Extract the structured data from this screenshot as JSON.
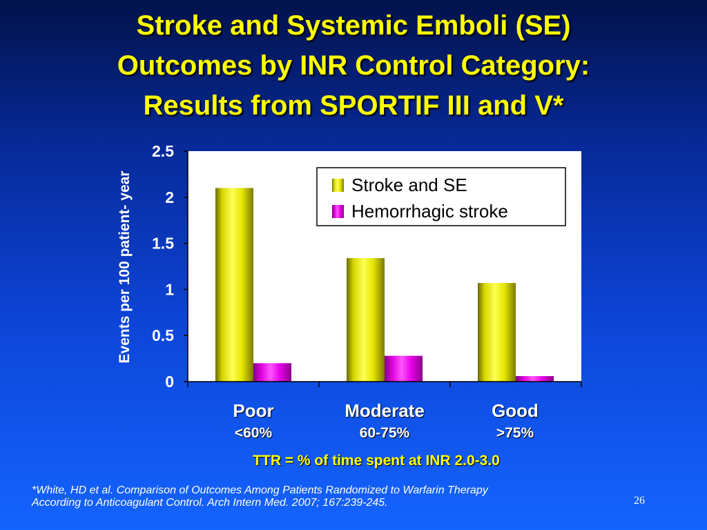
{
  "slide": {
    "title_lines": [
      "Stroke and Systemic Emboli (SE)",
      "Outcomes by INR Control Category:",
      "Results from SPORTIF III and V*"
    ],
    "footnote_lines": [
      "*White, HD et al. Comparison of Outcomes Among Patients Randomized to Warfarin Therapy",
      "According to Anticoagulant Control.  Arch Intern Med. 2007; 167:239-245."
    ],
    "page_number": "26"
  },
  "chart_data": {
    "type": "bar",
    "categories": [
      "Poor",
      "Moderate",
      "Good"
    ],
    "category_sublabels": [
      "<60%",
      "60-75%",
      ">75%"
    ],
    "series": [
      {
        "name": "Stroke and SE",
        "values": [
          2.1,
          1.34,
          1.07
        ],
        "labels": [
          "2.1",
          "1.34",
          "1.07"
        ],
        "color": "#e6e600"
      },
      {
        "name": "Hemorrhagic stroke",
        "values": [
          0.2,
          0.28,
          0.06
        ],
        "labels": [
          "0.2",
          "0.28",
          "0.06"
        ],
        "color": "#e600e6"
      }
    ],
    "title": "",
    "xlabel": "TTR = % of time spent at INR 2.0-3.0",
    "ylabel": "Events per 100 patient- year",
    "ylim": [
      0,
      2.5
    ],
    "yticks": [
      "0",
      "0.5",
      "1",
      "1.5",
      "2",
      "2.5"
    ],
    "grid": false,
    "legend_position": "top-right",
    "plot_background": "#ffffff",
    "label_color": "#ffffff"
  }
}
